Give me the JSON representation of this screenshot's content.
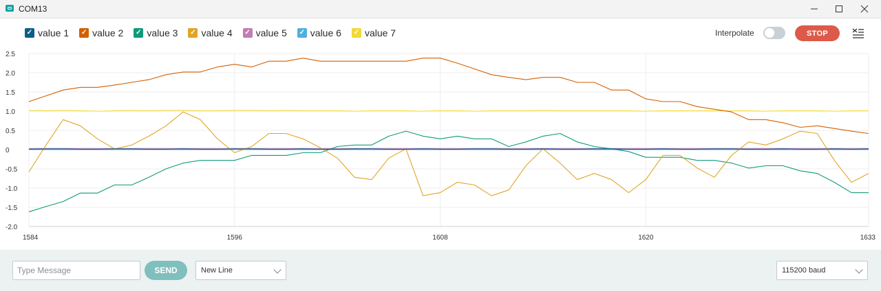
{
  "window": {
    "title": "COM13",
    "icons": {
      "app": "serial-plotter-icon",
      "minimize": "minimize-icon",
      "maximize": "maximize-icon",
      "close": "close-icon"
    }
  },
  "legend": [
    {
      "label": "value 1",
      "color": "#0b5e8a",
      "checked": true
    },
    {
      "label": "value 2",
      "color": "#d35f00",
      "checked": true
    },
    {
      "label": "value 3",
      "color": "#0e9a79",
      "checked": true
    },
    {
      "label": "value 4",
      "color": "#e1a526",
      "checked": true
    },
    {
      "label": "value 5",
      "color": "#c47cb4",
      "checked": true
    },
    {
      "label": "value 6",
      "color": "#4fb0df",
      "checked": true
    },
    {
      "label": "value 7",
      "color": "#f2d934",
      "checked": true
    }
  ],
  "controls": {
    "interpolate_label": "Interpolate",
    "interpolate_on": false,
    "stop_label": "STOP",
    "menu_icon": "clear-list-icon"
  },
  "chart_data": {
    "type": "line",
    "x_ticks": [
      "1584",
      "1596",
      "1608",
      "1620",
      "1633"
    ],
    "xlim": [
      1584,
      1633
    ],
    "y_ticks": [
      "2.5",
      "2.0",
      "1.5",
      "1.0",
      "0.5",
      "0",
      "-0.5",
      "-1.0",
      "-1.5",
      "-2.0"
    ],
    "ylim": [
      -2.0,
      2.5
    ],
    "grid": true,
    "x": [
      1584,
      1585,
      1586,
      1587,
      1588,
      1589,
      1590,
      1591,
      1592,
      1593,
      1594,
      1595,
      1596,
      1597,
      1598,
      1599,
      1600,
      1601,
      1602,
      1603,
      1604,
      1605,
      1606,
      1607,
      1608,
      1609,
      1610,
      1611,
      1612,
      1613,
      1614,
      1615,
      1616,
      1617,
      1618,
      1619,
      1620,
      1621,
      1622,
      1623,
      1624,
      1625,
      1626,
      1627,
      1628,
      1629,
      1630,
      1631,
      1632,
      1633
    ],
    "series": [
      {
        "name": "value 1",
        "color": "#0b5e8a",
        "values": [
          0.01,
          0.02,
          0.02,
          0.01,
          0.01,
          0.02,
          0.02,
          0.01,
          0.01,
          0.02,
          0.01,
          0.01,
          0.02,
          0.02,
          0.01,
          0.01,
          0.02,
          0.01,
          0.01,
          0.02,
          0.02,
          0.01,
          0.01,
          0.02,
          0.01,
          0.01,
          0.02,
          0.02,
          0.01,
          0.01,
          0.02,
          0.01,
          0.01,
          0.02,
          0.02,
          0.01,
          0.01,
          0.02,
          0.01,
          0.01,
          0.02,
          0.02,
          0.01,
          0.01,
          0.02,
          0.01,
          0.01,
          0.02,
          0.01,
          0.02
        ]
      },
      {
        "name": "value 2",
        "color": "#d35f00",
        "values": [
          1.25,
          1.4,
          1.55,
          1.62,
          1.62,
          1.68,
          1.75,
          1.82,
          1.95,
          2.02,
          2.02,
          2.15,
          2.22,
          2.15,
          2.3,
          2.3,
          2.38,
          2.3,
          2.3,
          2.3,
          2.3,
          2.3,
          2.3,
          2.38,
          2.38,
          2.25,
          2.1,
          1.95,
          1.88,
          1.82,
          1.88,
          1.88,
          1.75,
          1.75,
          1.55,
          1.55,
          1.32,
          1.25,
          1.25,
          1.12,
          1.05,
          0.98,
          0.78,
          0.78,
          0.7,
          0.58,
          0.62,
          0.55,
          0.48,
          0.42
        ]
      },
      {
        "name": "value 3",
        "color": "#0e9a79",
        "values": [
          -1.62,
          -1.48,
          -1.35,
          -1.13,
          -1.13,
          -0.92,
          -0.92,
          -0.72,
          -0.5,
          -0.35,
          -0.28,
          -0.28,
          -0.28,
          -0.15,
          -0.15,
          -0.15,
          -0.08,
          -0.08,
          0.08,
          0.12,
          0.12,
          0.35,
          0.48,
          0.35,
          0.28,
          0.35,
          0.28,
          0.28,
          0.08,
          0.2,
          0.35,
          0.42,
          0.2,
          0.08,
          0.02,
          -0.05,
          -0.2,
          -0.2,
          -0.2,
          -0.28,
          -0.28,
          -0.35,
          -0.48,
          -0.42,
          -0.42,
          -0.55,
          -0.62,
          -0.85,
          -1.12,
          -1.12
        ]
      },
      {
        "name": "value 4",
        "color": "#e1a526",
        "values": [
          -0.58,
          0.12,
          0.78,
          0.62,
          0.28,
          0.02,
          0.12,
          0.35,
          0.62,
          0.98,
          0.78,
          0.28,
          -0.08,
          0.08,
          0.42,
          0.42,
          0.28,
          0.05,
          -0.22,
          -0.72,
          -0.78,
          -0.22,
          0.02,
          -1.2,
          -1.12,
          -0.85,
          -0.92,
          -1.2,
          -1.05,
          -0.42,
          0.02,
          -0.35,
          -0.78,
          -0.62,
          -0.78,
          -1.12,
          -0.78,
          -0.15,
          -0.15,
          -0.48,
          -0.72,
          -0.15,
          0.2,
          0.12,
          0.28,
          0.48,
          0.42,
          -0.28,
          -0.85,
          -0.62
        ]
      },
      {
        "name": "value 5",
        "color": "#c47cb4",
        "values": [
          0.03,
          0.03,
          0.03,
          0.03,
          0.03,
          0.03,
          0.03,
          0.03,
          0.03,
          0.03,
          0.03,
          0.03,
          0.03,
          0.03,
          0.03,
          0.03,
          0.03,
          0.03,
          0.03,
          0.03,
          0.03,
          0.03,
          0.03,
          0.03,
          0.03,
          0.03,
          0.03,
          0.03,
          0.03,
          0.03,
          0.03,
          0.03,
          0.03,
          0.03,
          0.03,
          0.03,
          0.03,
          0.03,
          0.03,
          0.03,
          0.03,
          0.03,
          0.03,
          0.03,
          0.03,
          0.03,
          0.03,
          0.03,
          0.03,
          0.03
        ]
      },
      {
        "name": "value 6",
        "color": "#4fb0df",
        "values": [
          0.0,
          0.0,
          0.0,
          0.0,
          0.0,
          0.0,
          0.0,
          0.0,
          0.0,
          0.0,
          0.0,
          0.0,
          0.0,
          0.0,
          0.0,
          0.0,
          0.0,
          0.0,
          0.0,
          0.0,
          0.0,
          0.0,
          0.0,
          0.0,
          0.0,
          0.0,
          0.0,
          0.0,
          0.0,
          0.0,
          0.0,
          0.0,
          0.0,
          0.0,
          0.0,
          0.0,
          0.0,
          0.0,
          0.0,
          0.0,
          0.0,
          0.0,
          0.0,
          0.0,
          0.0,
          0.0,
          0.0,
          0.0,
          0.0,
          0.0
        ]
      },
      {
        "name": "value 7",
        "color": "#f2d934",
        "values": [
          1.02,
          1.01,
          1.02,
          1.01,
          1.0,
          1.01,
          1.02,
          1.01,
          1.02,
          1.02,
          1.01,
          1.01,
          1.02,
          1.02,
          1.01,
          1.02,
          1.01,
          1.01,
          1.01,
          1.0,
          1.01,
          1.01,
          1.01,
          1.0,
          1.01,
          1.01,
          1.0,
          1.01,
          1.01,
          1.01,
          1.02,
          1.01,
          1.01,
          1.01,
          1.01,
          1.01,
          1.0,
          1.01,
          1.01,
          1.01,
          1.01,
          1.01,
          1.01,
          1.0,
          1.01,
          1.01,
          1.01,
          1.0,
          1.01,
          1.01
        ]
      }
    ]
  },
  "footer": {
    "message_placeholder": "Type Message",
    "message_value": "",
    "send_label": "SEND",
    "line_ending": "New Line",
    "baud": "115200 baud"
  }
}
